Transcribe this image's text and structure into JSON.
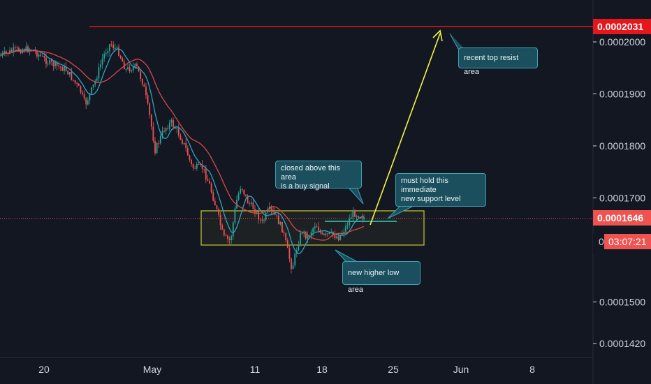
{
  "chart_data": {
    "type": "candlestick",
    "x_tick_labels": [
      "20",
      "May",
      "11",
      "18",
      "25",
      "Jun",
      "8"
    ],
    "y_tick_labels": [
      "0.0002000",
      "0.0001900",
      "0.0001800",
      "0.0001700",
      "0.0001500",
      "0.0001420"
    ],
    "ylim": [
      0.000141,
      0.0002065
    ],
    "current_price": "0.0001646",
    "resistance_price": "0.0002031",
    "countdown": "03:07:21",
    "partial_tick": "0",
    "grid": false,
    "annotations": [
      {
        "name": "resist",
        "text": "recent top resist area"
      },
      {
        "name": "buy",
        "text": "closed above this area\nis a buy signal"
      },
      {
        "name": "support",
        "text": "must hold this immediate\nnew support level"
      },
      {
        "name": "low",
        "text": "new higher low area"
      }
    ],
    "colors": {
      "background": "#131722",
      "up": "#26a69a",
      "down": "#ef5350",
      "resistance": "#b2181b",
      "box": "#c8c832",
      "arrow": "#f5f542",
      "ma_fast": "#2ea4c4",
      "ma_slow": "#d84a4a",
      "support_line": "#26a69a"
    }
  }
}
